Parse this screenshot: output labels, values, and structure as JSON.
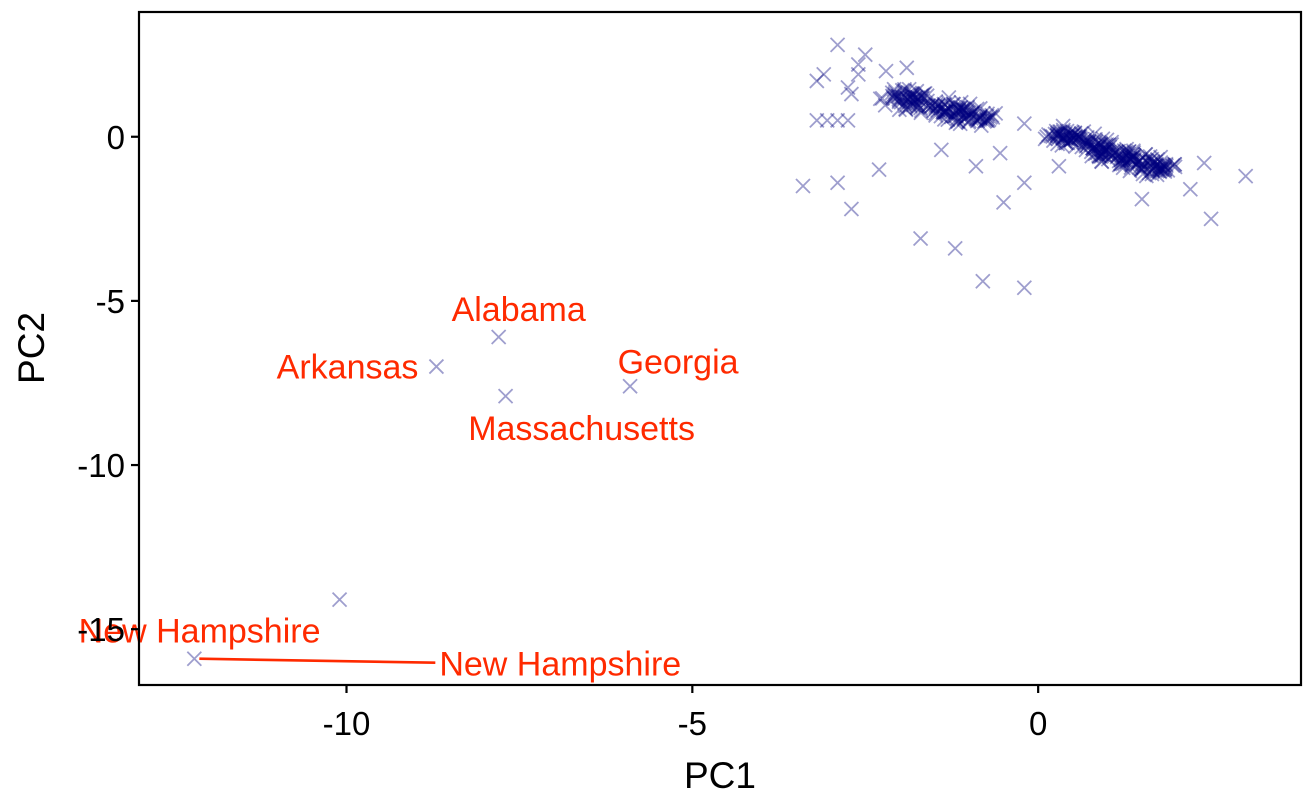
{
  "chart_data": {
    "type": "scatter",
    "title": "",
    "xlabel": "PC1",
    "ylabel": "PC2",
    "xlim": [
      -13.0,
      3.8
    ],
    "ylim": [
      -16.7,
      3.8
    ],
    "x_ticks": [
      -10,
      -5,
      0
    ],
    "y_ticks": [
      -15,
      -10,
      -5,
      0
    ],
    "x_tick_labels": [
      "-10",
      "-5",
      "0"
    ],
    "y_tick_labels": [
      "-15",
      "-10",
      "-5",
      "0"
    ],
    "grid": false,
    "legend": "none",
    "marker": "x",
    "point_color": "#00007f",
    "annotation_color": "#ff2a00",
    "labeled_points": [
      {
        "x": -7.8,
        "y": -6.1
      },
      {
        "x": -8.7,
        "y": -7.0
      },
      {
        "x": -5.9,
        "y": -7.6
      },
      {
        "x": -7.7,
        "y": -7.9
      },
      {
        "x": -10.1,
        "y": -14.1
      },
      {
        "x": -12.2,
        "y": -15.9
      }
    ],
    "annotations": [
      {
        "text": "Alabama",
        "x": -7.8,
        "y": -6.1
      },
      {
        "text": "Arkansas",
        "x": -8.7,
        "y": -7.0
      },
      {
        "text": "Georgia",
        "x": -5.9,
        "y": -7.6
      },
      {
        "text": "Massachusetts",
        "x": -7.7,
        "y": -7.9
      },
      {
        "text": "New Hampshire",
        "x": -10.1,
        "y": -14.1
      },
      {
        "text": "New Hampshire",
        "x": -12.2,
        "y": -15.9
      }
    ],
    "outlier_points": [
      {
        "x": -2.9,
        "y": 2.8
      },
      {
        "x": -2.5,
        "y": 2.5
      },
      {
        "x": -2.6,
        "y": 2.2
      },
      {
        "x": -2.6,
        "y": 1.9
      },
      {
        "x": -2.75,
        "y": 1.5
      },
      {
        "x": -2.7,
        "y": 1.3
      },
      {
        "x": -3.2,
        "y": 1.7
      },
      {
        "x": -3.1,
        "y": 1.9
      },
      {
        "x": -2.2,
        "y": 2.0
      },
      {
        "x": -3.2,
        "y": 0.5
      },
      {
        "x": -3.05,
        "y": 0.5
      },
      {
        "x": -2.9,
        "y": 0.5
      },
      {
        "x": -2.75,
        "y": 0.5
      },
      {
        "x": -3.4,
        "y": -1.5
      },
      {
        "x": -2.9,
        "y": -1.4
      },
      {
        "x": -2.7,
        "y": -2.2
      },
      {
        "x": -2.3,
        "y": -1.0
      },
      {
        "x": -1.7,
        "y": -3.1
      },
      {
        "x": -1.2,
        "y": -3.4
      },
      {
        "x": -0.8,
        "y": -4.4
      },
      {
        "x": -0.2,
        "y": -4.6
      },
      {
        "x": -0.5,
        "y": -2.0
      },
      {
        "x": -0.2,
        "y": -1.4
      },
      {
        "x": 0.3,
        "y": -0.9
      },
      {
        "x": -0.2,
        "y": 0.4
      },
      {
        "x": -0.9,
        "y": -0.9
      },
      {
        "x": -1.4,
        "y": -0.4
      },
      {
        "x": -0.55,
        "y": -0.5
      },
      {
        "x": 3.0,
        "y": -1.2
      },
      {
        "x": 2.5,
        "y": -2.5
      },
      {
        "x": 2.4,
        "y": -0.8
      },
      {
        "x": 2.2,
        "y": -1.6
      },
      {
        "x": 1.5,
        "y": -1.9
      },
      {
        "x": -1.9,
        "y": 2.1
      }
    ],
    "clusters": [
      {
        "cx": -1.45,
        "cy": 0.9,
        "slope": -0.55,
        "half_length": 0.75,
        "spread": 0.42,
        "count": 170
      },
      {
        "cx": 1.05,
        "cy": -0.45,
        "slope": -0.75,
        "half_length": 0.9,
        "spread": 0.38,
        "count": 240
      }
    ]
  }
}
